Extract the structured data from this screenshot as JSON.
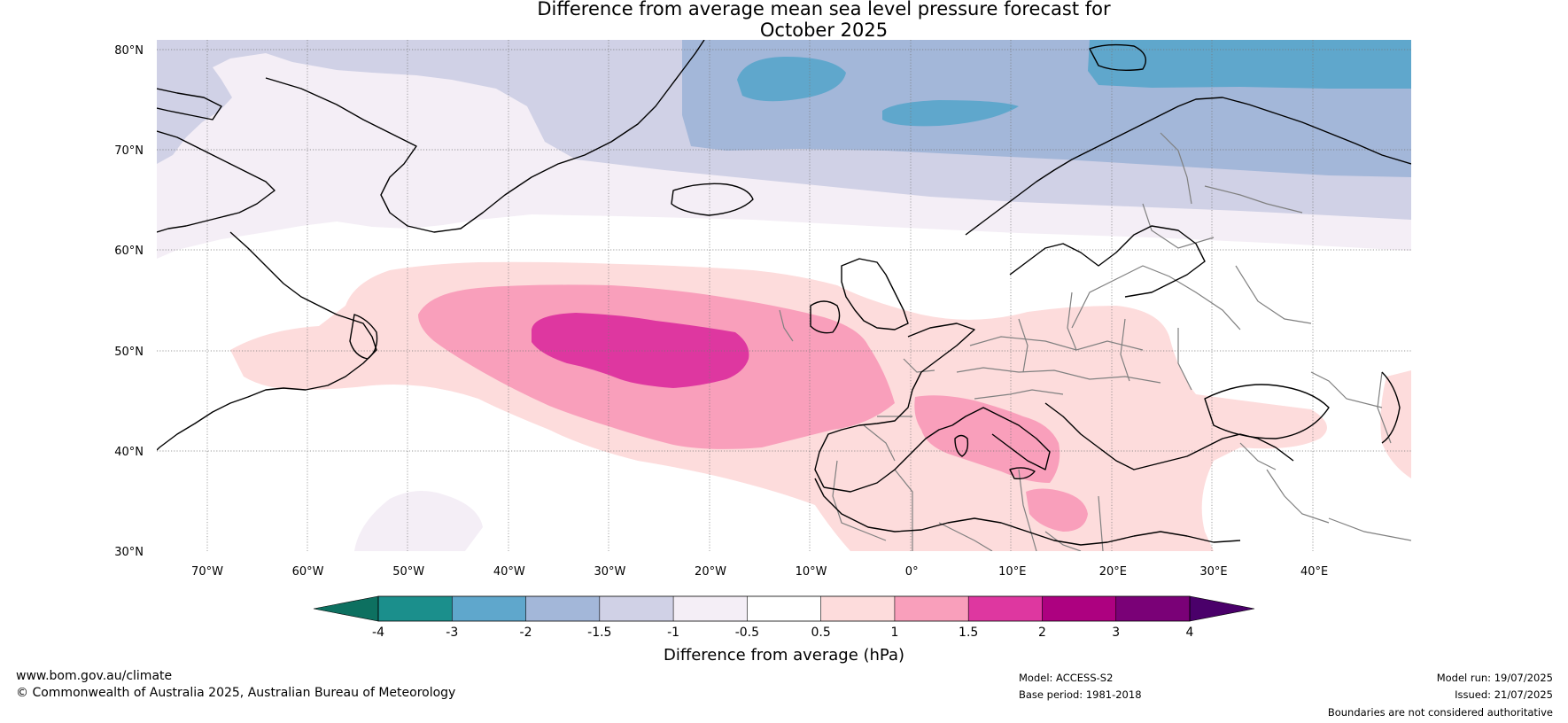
{
  "title_line1": "Difference from average mean sea level pressure forecast for",
  "title_line2": "October 2025",
  "lat_labels": [
    "80°N",
    "70°N",
    "60°N",
    "50°N",
    "40°N",
    "30°N"
  ],
  "lon_labels": [
    "70°W",
    "60°W",
    "50°W",
    "40°W",
    "30°W",
    "20°W",
    "10°W",
    "0°",
    "10°E",
    "20°E",
    "30°E",
    "40°E"
  ],
  "colorbar": {
    "label": "Difference from average (hPa)",
    "ticks": [
      "-4",
      "-3",
      "-2",
      "-1.5",
      "-1",
      "-0.5",
      "0.5",
      "1",
      "1.5",
      "2",
      "3",
      "4"
    ],
    "colors": [
      "#1b8f8c",
      "#5fa7cc",
      "#a3b7d9",
      "#d0d1e6",
      "#f4eef6",
      "#ffffff",
      "#fddcdc",
      "#f99fbb",
      "#de37a0",
      "#ad0180",
      "#7a0177"
    ],
    "under_color": "#0d7060",
    "over_color": "#4a006a"
  },
  "footer": {
    "website": "www.bom.gov.au/climate",
    "copyright": "© Commonwealth of Australia 2025, Australian Bureau of Meteorology",
    "model": "Model: ACCESS-S2",
    "base_period": "Base period: 1981-2018",
    "model_run": "Model run: 19/07/2025",
    "issued": "Issued: 21/07/2025",
    "disclaimer": "Boundaries are not considered authoritative"
  }
}
